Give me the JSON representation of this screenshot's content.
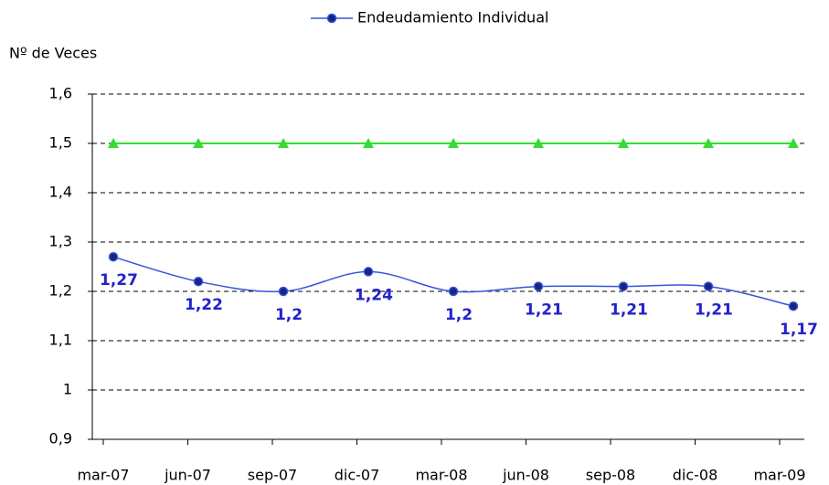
{
  "chart_data": {
    "type": "line",
    "y_label": "Nº de Veces",
    "categories": [
      "mar-07",
      "jun-07",
      "sep-07",
      "dic-07",
      "mar-08",
      "jun-08",
      "sep-08",
      "dic-08",
      "mar-09"
    ],
    "series": [
      {
        "name": "Endeudamiento Individual",
        "color": "#3355dd",
        "marker": "circle",
        "values": [
          1.27,
          1.22,
          1.2,
          1.24,
          1.2,
          1.21,
          1.21,
          1.21,
          1.17
        ],
        "value_labels": [
          "1,27",
          "1,22",
          "1,2",
          "1,24",
          "1,2",
          "1,21",
          "1,21",
          "1,21",
          "1,17"
        ]
      },
      {
        "color": "#33dd33",
        "marker": "triangle",
        "values": [
          1.5,
          1.5,
          1.5,
          1.5,
          1.5,
          1.5,
          1.5,
          1.5,
          1.5
        ]
      }
    ],
    "ylim": [
      0.9,
      1.6
    ],
    "yticks": [
      {
        "value": 0.9,
        "label": "0,9"
      },
      1,
      {
        "value": 1.1,
        "label": "1,1"
      },
      {
        "value": 1.2,
        "label": "1,2"
      },
      {
        "value": 1.3,
        "label": "1,3"
      },
      {
        "value": 1.4,
        "label": "1,4"
      },
      {
        "value": 1.5,
        "label": "1,5"
      },
      {
        "value": 1.6,
        "label": "1,6"
      }
    ],
    "grid": true,
    "legend": "top"
  }
}
